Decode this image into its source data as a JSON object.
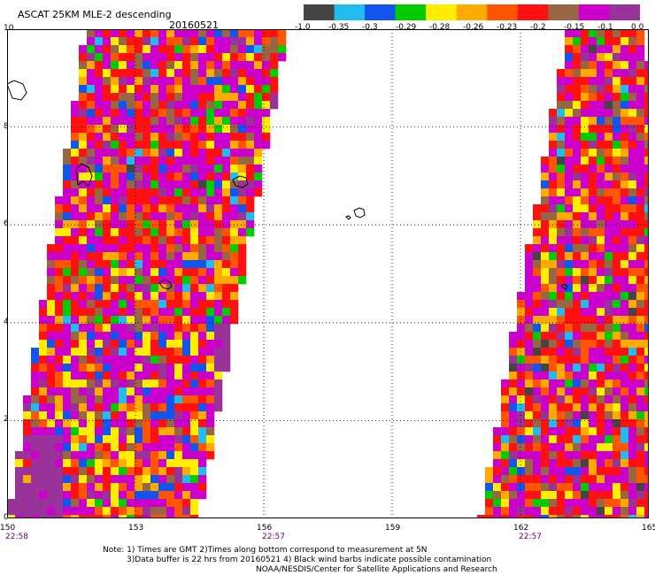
{
  "title": "ASCAT 25KM MLE-2 descending",
  "date": "20160521",
  "colorbar": {
    "labels": [
      "-1.0",
      "-0.35",
      "-0.3",
      "-0.29",
      "-0.28",
      "-0.26",
      "-0.23",
      "-0.2",
      "-0.15",
      "-0.1",
      "0.0"
    ],
    "colors": [
      "#444444",
      "#22bbee",
      "#1155ee",
      "#00cc00",
      "#ffee00",
      "#ffaa00",
      "#ff5500",
      "#ff1111",
      "#996644",
      "#cc00cc",
      "#993399"
    ]
  },
  "map": {
    "lon_ticks": [
      "150",
      "153",
      "156",
      "159",
      "162",
      "165"
    ],
    "lat_ticks": [
      "0",
      "2",
      "4",
      "6",
      "8",
      "10"
    ],
    "pass_times": [
      {
        "lon": 150,
        "label": "22:58"
      },
      {
        "lon": 156,
        "label": "22:57"
      },
      {
        "lon": 162,
        "label": "22:57"
      }
    ],
    "lon_range": [
      150,
      165
    ],
    "lat_range": [
      0,
      10
    ],
    "grid": true
  },
  "notes": {
    "line1": "Note: 1) Times are GMT 2)Times along bottom correspond to measurement at 5N",
    "line2": "3)Data buffer is 22 hrs from 20160521 4) Black wind barbs indicate possible contamination",
    "line3": "NOAA/NESDIS/Center for Satellite Applications and Research"
  }
}
